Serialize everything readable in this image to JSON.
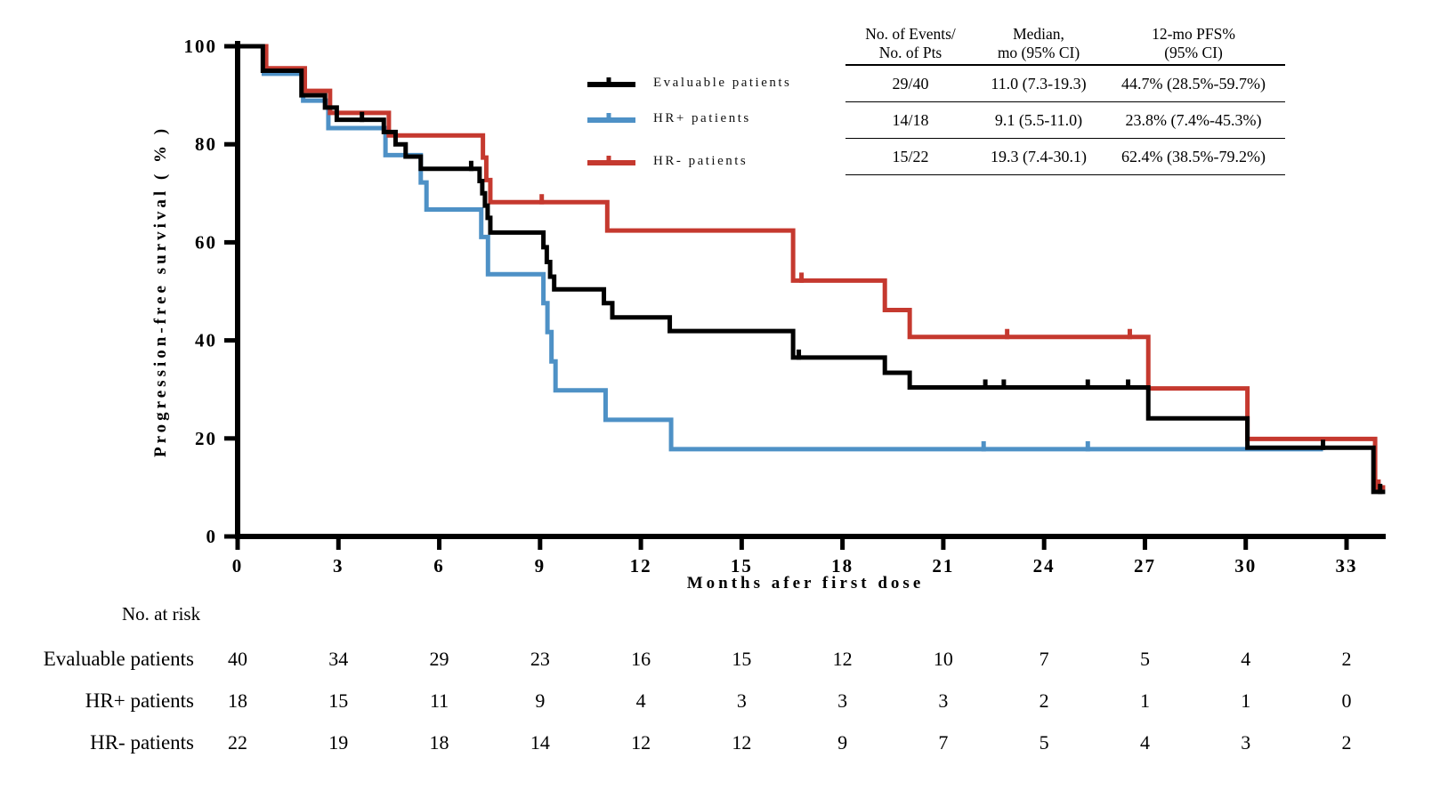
{
  "chart_data": {
    "type": "line",
    "subtype": "kaplan-meier-step",
    "title": "",
    "xlabel": "Months afer first dose",
    "ylabel": "Progression-free survival ( % )",
    "xlim": [
      0,
      34.5
    ],
    "ylim": [
      0,
      100
    ],
    "xticks": [
      0,
      3,
      6,
      9,
      12,
      15,
      18,
      21,
      24,
      27,
      30,
      33
    ],
    "yticks": [
      0,
      20,
      40,
      60,
      80,
      100
    ],
    "grid": false,
    "series": [
      {
        "name": "Evaluable patients",
        "color": "#000000",
        "end": 34.15,
        "steps": [
          [
            0,
            100
          ],
          [
            0.75,
            95
          ],
          [
            1.9,
            90
          ],
          [
            2.6,
            87.5
          ],
          [
            2.95,
            85
          ],
          [
            4.35,
            82.5
          ],
          [
            4.7,
            80
          ],
          [
            5.0,
            77.5
          ],
          [
            5.45,
            75
          ],
          [
            7.2,
            72.5
          ],
          [
            7.28,
            70
          ],
          [
            7.36,
            67.5
          ],
          [
            7.44,
            65
          ],
          [
            7.52,
            62
          ],
          [
            9.1,
            59
          ],
          [
            9.2,
            56
          ],
          [
            9.3,
            53
          ],
          [
            9.42,
            50.4
          ],
          [
            10.9,
            47.6
          ],
          [
            11.15,
            44.7
          ],
          [
            12.86,
            41.9
          ],
          [
            16.53,
            36.5
          ],
          [
            19.26,
            33.4
          ],
          [
            20.0,
            30.4
          ],
          [
            27.1,
            24.1
          ],
          [
            30.05,
            18.1
          ],
          [
            33.8,
            9.1
          ]
        ],
        "censors": [
          [
            3.7,
            85
          ],
          [
            6.95,
            75
          ],
          [
            16.7,
            36.5
          ],
          [
            22.25,
            30.4
          ],
          [
            22.8,
            30.4
          ],
          [
            25.3,
            30.4
          ],
          [
            26.5,
            30.4
          ],
          [
            32.3,
            18.1
          ],
          [
            34.0,
            9.1
          ]
        ]
      },
      {
        "name": "HR+ patients",
        "color": "#4E91C6",
        "end": 32.3,
        "steps": [
          [
            0,
            100
          ],
          [
            0.78,
            94.4
          ],
          [
            1.95,
            88.9
          ],
          [
            2.7,
            83.3
          ],
          [
            4.4,
            77.8
          ],
          [
            5.45,
            72.2
          ],
          [
            5.62,
            66.7
          ],
          [
            7.25,
            61.1
          ],
          [
            7.45,
            53.5
          ],
          [
            9.1,
            47.6
          ],
          [
            9.22,
            41.7
          ],
          [
            9.34,
            35.7
          ],
          [
            9.46,
            29.8
          ],
          [
            10.95,
            23.8
          ],
          [
            12.9,
            17.8
          ]
        ],
        "censors": [
          [
            22.2,
            17.8
          ],
          [
            25.3,
            17.8
          ]
        ]
      },
      {
        "name": "HR- patients",
        "color": "#C5392F",
        "end": 34.15,
        "steps": [
          [
            0,
            100
          ],
          [
            0.85,
            95.5
          ],
          [
            2.0,
            90.9
          ],
          [
            2.75,
            86.4
          ],
          [
            4.5,
            81.8
          ],
          [
            7.3,
            77.3
          ],
          [
            7.4,
            72.7
          ],
          [
            7.52,
            68.2
          ],
          [
            11.0,
            62.4
          ],
          [
            16.53,
            52.2
          ],
          [
            19.26,
            46.2
          ],
          [
            20.0,
            40.7
          ],
          [
            27.1,
            30.2
          ],
          [
            30.05,
            19.9
          ],
          [
            33.85,
            10.0
          ]
        ],
        "censors": [
          [
            9.05,
            68.2
          ],
          [
            16.78,
            52.2
          ],
          [
            22.9,
            40.7
          ],
          [
            26.55,
            40.7
          ],
          [
            33.95,
            10.0
          ]
        ]
      }
    ],
    "at_risk": {
      "label": "No. at risk",
      "months": [
        0,
        3,
        6,
        9,
        12,
        15,
        18,
        21,
        24,
        27,
        30,
        33
      ],
      "rows": [
        {
          "label": "Evaluable patients",
          "counts": [
            40,
            34,
            29,
            23,
            16,
            15,
            12,
            10,
            7,
            5,
            4,
            2
          ]
        },
        {
          "label": "HR+ patients",
          "counts": [
            18,
            15,
            11,
            9,
            4,
            3,
            3,
            3,
            2,
            1,
            1,
            0
          ]
        },
        {
          "label": "HR- patients",
          "counts": [
            22,
            19,
            18,
            14,
            12,
            12,
            9,
            7,
            5,
            4,
            3,
            2
          ]
        }
      ]
    }
  },
  "legend": {
    "items": [
      {
        "label": "Evaluable patients",
        "color": "#000000"
      },
      {
        "label": "HR+ patients",
        "color": "#4E91C6"
      },
      {
        "label": "HR- patients",
        "color": "#C5392F"
      }
    ]
  },
  "stats_table": {
    "headers": [
      {
        "line1": "No. of Events/",
        "line2": "No. of Pts"
      },
      {
        "line1": "Median,",
        "line2": "mo (95% CI)"
      },
      {
        "line1": "12-mo PFS%",
        "line2": "(95% CI)"
      }
    ],
    "rows": [
      {
        "events_per_pts": "29/40",
        "median": "11.0 (7.3-19.3)",
        "pfs12": "44.7% (28.5%-59.7%)"
      },
      {
        "events_per_pts": "14/18",
        "median": "9.1 (5.5-11.0)",
        "pfs12": "23.8% (7.4%-45.3%)"
      },
      {
        "events_per_pts": "15/22",
        "median": "19.3 (7.4-30.1)",
        "pfs12": "62.4% (38.5%-79.2%)"
      }
    ]
  }
}
